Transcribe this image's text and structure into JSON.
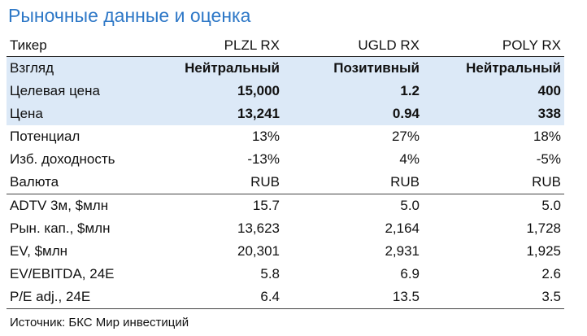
{
  "header": {
    "title": "Рыночные данные и оценка"
  },
  "table": {
    "columns": [
      "Тикер",
      "PLZL RX",
      "UGLD RX",
      "POLY RX"
    ],
    "rows": [
      [
        "Взгляд",
        "Нейтральный",
        "Позитивный",
        "Нейтральный"
      ],
      [
        "Целевая цена",
        "15,000",
        "1.2",
        "400"
      ],
      [
        "Цена",
        "13,241",
        "0.94",
        "338"
      ],
      [
        "Потенциал",
        "13%",
        "27%",
        "18%"
      ],
      [
        "Изб. доходность",
        "-13%",
        "4%",
        "-5%"
      ],
      [
        "Валюта",
        "RUB",
        "RUB",
        "RUB"
      ],
      [
        "ADTV 3м, $млн",
        "15.7",
        "5.0",
        "5.0"
      ],
      [
        "Рын. кап., $млн",
        "13,623",
        "2,164",
        "1,728"
      ],
      [
        "EV, $млн",
        "20,301",
        "2,931",
        "1,925"
      ],
      [
        "EV/EBITDA, 24E",
        "5.8",
        "6.9",
        "2.6"
      ],
      [
        "P/E adj., 24E",
        "6.4",
        "13.5",
        "3.5"
      ]
    ]
  },
  "footer": {
    "source": "Источник: БКС Мир инвестиций"
  }
}
